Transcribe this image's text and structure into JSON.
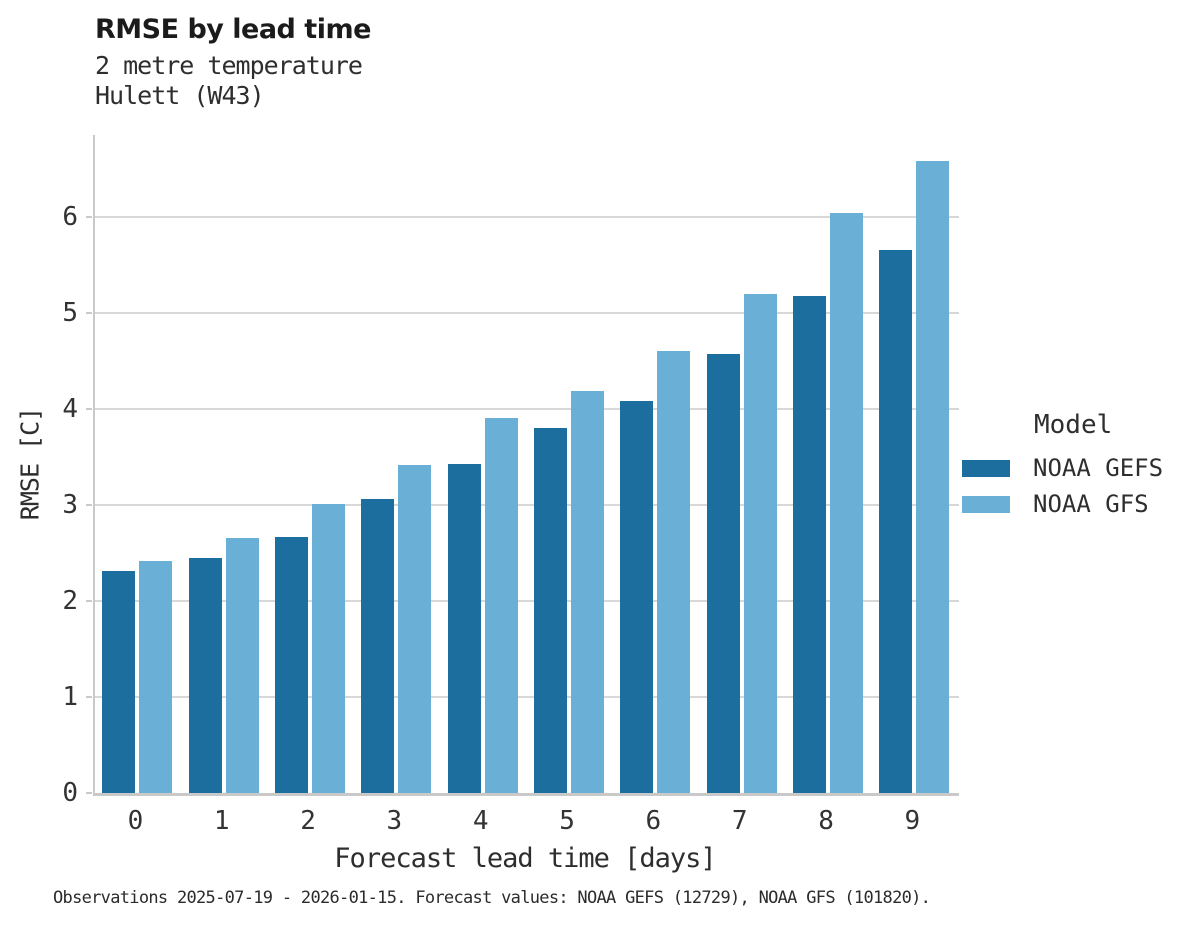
{
  "header": {
    "title": "RMSE by lead time",
    "subtitle": "2 metre temperature",
    "station": "Hulett (W43)"
  },
  "legend": {
    "title": "Model",
    "items": [
      {
        "label": "NOAA GEFS",
        "color": "#1b6e9e"
      },
      {
        "label": "NOAA GFS",
        "color": "#69afd6"
      }
    ]
  },
  "footer": {
    "caption": "Observations 2025-07-19 - 2026-01-15. Forecast values: NOAA GEFS (12729), NOAA GFS (101820)."
  },
  "chart_data": {
    "type": "bar",
    "title": "RMSE by lead time",
    "subtitle": "2 metre temperature",
    "station": "Hulett (W43)",
    "xlabel": "Forecast lead time [days]",
    "ylabel": "RMSE [C]",
    "categories": [
      "0",
      "1",
      "2",
      "3",
      "4",
      "5",
      "6",
      "7",
      "8",
      "9"
    ],
    "series": [
      {
        "name": "NOAA GEFS",
        "color": "#1b6e9e",
        "values": [
          2.31,
          2.45,
          2.67,
          3.06,
          3.42,
          3.8,
          4.08,
          4.57,
          5.17,
          5.65
        ]
      },
      {
        "name": "NOAA GFS",
        "color": "#69afd6",
        "values": [
          2.42,
          2.66,
          3.01,
          3.41,
          3.9,
          4.18,
          4.6,
          5.19,
          6.04,
          6.58
        ]
      }
    ],
    "ylim": [
      0,
      6.85
    ],
    "yticks": [
      0,
      1,
      2,
      3,
      4,
      5,
      6
    ],
    "grid": true,
    "legend_position": "right",
    "legend_title": "Model"
  }
}
